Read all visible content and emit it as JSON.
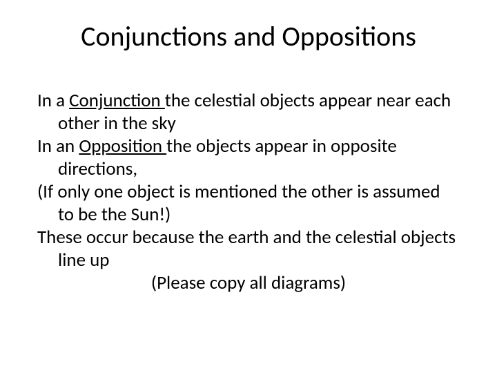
{
  "title": "Conjunctions and Oppositions",
  "body": {
    "p1_a": "In a ",
    "p1_u": "Conjunction ",
    "p1_b": "the celestial objects appear near each other in the sky",
    "p2_a": "In an ",
    "p2_u": "Opposition ",
    "p2_b": "the objects appear in opposite directions,",
    "p3": "(If only one object is mentioned the other is assumed to be the Sun!)",
    "p4": "These occur because the earth and the celestial objects line up",
    "p5": "(Please copy all diagrams)"
  },
  "style": {
    "background": "#ffffff",
    "text_color": "#000000",
    "title_fontsize": 40,
    "body_fontsize": 27,
    "font_family": "Calibri"
  }
}
